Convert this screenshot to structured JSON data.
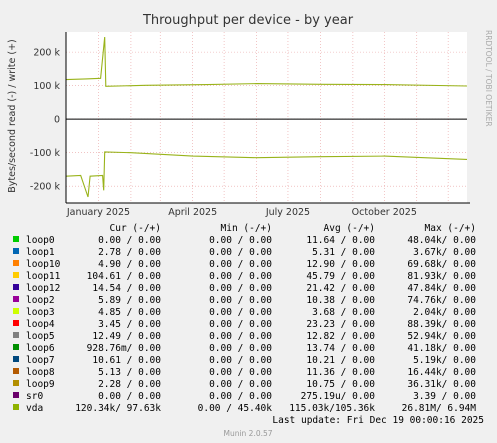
{
  "chart_data": {
    "type": "line",
    "title": "Throughput per device - by year",
    "ylabel": "Bytes/second read (-) / write (+)",
    "side_label": "RRDTOOL / TOBI OETIKER",
    "x_tick_labels": [
      "January 2025",
      "April 2025",
      "July 2025",
      "October 2025"
    ],
    "x_ticks": [
      "2025-01-01",
      "2025-04-01",
      "2025-07-01",
      "2025-10-01"
    ],
    "x_range": [
      "2024-12-01",
      "2025-12-19"
    ],
    "y_tick_labels": [
      "-200 k",
      "-100 k",
      "0",
      "100 k",
      "200 k"
    ],
    "y_ticks": [
      -200000,
      -100000,
      0,
      100000,
      200000
    ],
    "ylim": [
      -250000,
      260000
    ],
    "grid": true,
    "series": [
      {
        "name": "vda",
        "color": "#99b31a",
        "write": [
          [
            "2024-12-01",
            118000
          ],
          [
            "2024-12-20",
            120000
          ],
          [
            "2025-01-03",
            122000
          ],
          [
            "2025-01-07",
            245000
          ],
          [
            "2025-01-08",
            98000
          ],
          [
            "2025-02-15",
            101000
          ],
          [
            "2025-04-15",
            103000
          ],
          [
            "2025-06-01",
            106000
          ],
          [
            "2025-08-01",
            104000
          ],
          [
            "2025-10-01",
            103000
          ],
          [
            "2025-12-19",
            99000
          ]
        ],
        "read": [
          [
            "2024-12-01",
            -170000
          ],
          [
            "2024-12-15",
            -168000
          ],
          [
            "2024-12-22",
            -232000
          ],
          [
            "2024-12-24",
            -170000
          ],
          [
            "2025-01-05",
            -168000
          ],
          [
            "2025-01-06",
            -212000
          ],
          [
            "2025-01-07",
            -98000
          ],
          [
            "2025-02-01",
            -100000
          ],
          [
            "2025-04-01",
            -110000
          ],
          [
            "2025-06-01",
            -115000
          ],
          [
            "2025-08-01",
            -112000
          ],
          [
            "2025-10-01",
            -110000
          ],
          [
            "2025-12-19",
            -120000
          ]
        ]
      }
    ],
    "legend": {
      "headers": [
        "Cur (-/+)",
        "Min (-/+)",
        "Avg (-/+)",
        "Max (-/+)"
      ],
      "rows": [
        {
          "name": "loop0",
          "color": "#00cc00",
          "cur": "0.00 /  0.00",
          "min": "0.00 /  0.00",
          "avg": "11.64 /  0.00",
          "max": "48.04k/  0.00"
        },
        {
          "name": "loop1",
          "color": "#0066b3",
          "cur": "2.78 /  0.00",
          "min": "0.00 /  0.00",
          "avg": "5.31 /  0.00",
          "max": "3.67k/  0.00"
        },
        {
          "name": "loop10",
          "color": "#ff8000",
          "cur": "4.90 /  0.00",
          "min": "0.00 /  0.00",
          "avg": "12.90 /  0.00",
          "max": "69.68k/  0.00"
        },
        {
          "name": "loop11",
          "color": "#ffcc00",
          "cur": "104.61 /  0.00",
          "min": "0.00 /  0.00",
          "avg": "45.79 /  0.00",
          "max": "81.93k/  0.00"
        },
        {
          "name": "loop12",
          "color": "#330099",
          "cur": "14.54 /  0.00",
          "min": "0.00 /  0.00",
          "avg": "21.42 /  0.00",
          "max": "47.84k/  0.00"
        },
        {
          "name": "loop2",
          "color": "#990099",
          "cur": "5.89 /  0.00",
          "min": "0.00 /  0.00",
          "avg": "10.38 /  0.00",
          "max": "74.76k/  0.00"
        },
        {
          "name": "loop3",
          "color": "#ccff00",
          "cur": "4.85 /  0.00",
          "min": "0.00 /  0.00",
          "avg": "3.68 /  0.00",
          "max": "2.04k/  0.00"
        },
        {
          "name": "loop4",
          "color": "#ff0000",
          "cur": "3.45 /  0.00",
          "min": "0.00 /  0.00",
          "avg": "23.23 /  0.00",
          "max": "88.39k/  0.00"
        },
        {
          "name": "loop5",
          "color": "#808080",
          "cur": "12.49 /  0.00",
          "min": "0.00 /  0.00",
          "avg": "12.82 /  0.00",
          "max": "52.94k/  0.00"
        },
        {
          "name": "loop6",
          "color": "#008f00",
          "cur": "928.76m/  0.00",
          "min": "0.00 /  0.00",
          "avg": "13.74 /  0.00",
          "max": "41.18k/  0.00"
        },
        {
          "name": "loop7",
          "color": "#00487d",
          "cur": "10.61 /  0.00",
          "min": "0.00 /  0.00",
          "avg": "10.21 /  0.00",
          "max": "5.19k/  0.00"
        },
        {
          "name": "loop8",
          "color": "#b35a00",
          "cur": "5.13 /  0.00",
          "min": "0.00 /  0.00",
          "avg": "11.36 /  0.00",
          "max": "16.44k/  0.00"
        },
        {
          "name": "loop9",
          "color": "#b38f00",
          "cur": "2.28 /  0.00",
          "min": "0.00 /  0.00",
          "avg": "10.75 /  0.00",
          "max": "36.31k/  0.00"
        },
        {
          "name": "sr0",
          "color": "#6b006b",
          "cur": "0.00 /  0.00",
          "min": "0.00 /  0.00",
          "avg": "275.19u/  0.00",
          "max": "3.39 /  0.00"
        },
        {
          "name": "vda",
          "color": "#8fb300",
          "cur": "120.34k/ 97.63k",
          "min": "0.00 / 45.40k",
          "avg": "115.03k/105.36k",
          "max": "26.81M/  6.94M"
        }
      ]
    },
    "last_update": "Last update: Fri Dec 19 00:00:16 2025",
    "footer": "Munin 2.0.57"
  }
}
